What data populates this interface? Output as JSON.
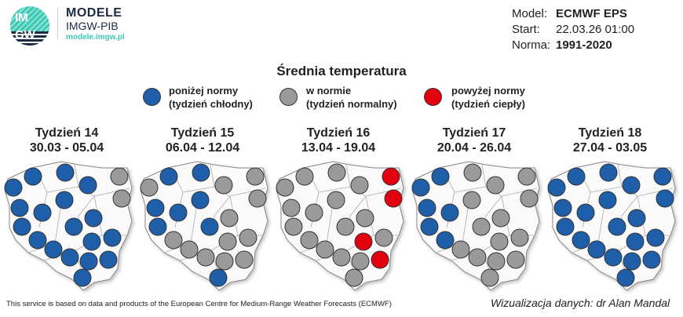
{
  "logo": {
    "mark": "IMGW",
    "line1": "MODELE",
    "line2": "IMGW-PIB",
    "url": "modele.imgw.pl"
  },
  "info": {
    "model_label": "Model:",
    "model": "ECMWF EPS",
    "start_label": "Start:",
    "start": "22.03.26 01:00",
    "norma_label": "Norma:",
    "norma": "1991-2020"
  },
  "title": "Średnia temperatura",
  "legend": [
    {
      "key": "below",
      "color": "#1f5faa",
      "line1": "poniżej normy",
      "line2": "(tydzień chłodny)"
    },
    {
      "key": "normal",
      "color": "#9a9a9a",
      "line1": "w normie",
      "line2": "(tydzień normalny)"
    },
    {
      "key": "above",
      "color": "#e3000f",
      "line1": "powyżej normy",
      "line2": "(tydzień ciepły)"
    }
  ],
  "weeks": [
    {
      "title": "Tydzień 14",
      "dates": "30.03 - 05.04",
      "stations": [
        "below",
        "below",
        "below",
        "below",
        "normal",
        "normal",
        "below",
        "below",
        "below",
        "below",
        "below",
        "below",
        "below",
        "below",
        "below",
        "below",
        "below",
        "below",
        "below",
        "below"
      ]
    },
    {
      "title": "Tydzień 15",
      "dates": "06.04 - 12.04",
      "stations": [
        "below",
        "below",
        "normal",
        "normal",
        "normal",
        "normal",
        "below",
        "below",
        "below",
        "normal",
        "below",
        "below",
        "normal",
        "normal",
        "normal",
        "normal",
        "normal",
        "normal",
        "normal",
        "below"
      ]
    },
    {
      "title": "Tydzień 16",
      "dates": "13.04 - 19.04",
      "stations": [
        "normal",
        "normal",
        "normal",
        "normal",
        "above",
        "above",
        "normal",
        "normal",
        "normal",
        "normal",
        "normal",
        "normal",
        "normal",
        "normal",
        "above",
        "normal",
        "normal",
        "normal",
        "above",
        "normal"
      ]
    },
    {
      "title": "Tydzień 17",
      "dates": "20.04 - 26.04",
      "stations": [
        "below",
        "normal",
        "below",
        "normal",
        "normal",
        "normal",
        "normal",
        "below",
        "below",
        "normal",
        "below",
        "normal",
        "normal",
        "below",
        "normal",
        "normal",
        "normal",
        "normal",
        "normal",
        "normal"
      ]
    },
    {
      "title": "Tydzień 18",
      "dates": "27.04 - 03.05",
      "stations": [
        "below",
        "below",
        "below",
        "below",
        "below",
        "below",
        "below",
        "below",
        "below",
        "below",
        "below",
        "below",
        "below",
        "below",
        "below",
        "below",
        "below",
        "below",
        "below",
        "below"
      ]
    }
  ],
  "footer": "This service is based on data and products of the European Centre for Medium-Range Weather Forecasts (ECMWF)",
  "credit": "Wizualizacja danych: dr Alan Mandal"
}
